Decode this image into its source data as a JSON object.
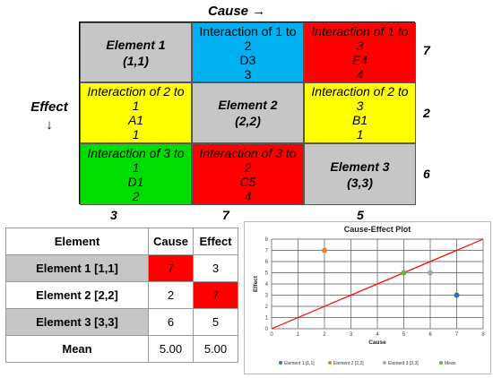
{
  "matrix": {
    "cause_label": "Cause →",
    "effect_label": "Effect",
    "effect_arrow": "↓",
    "cells": [
      [
        {
          "lines": [
            "Element 1",
            "(1,1)"
          ],
          "bg": "#c6c6c6",
          "diag": true
        },
        {
          "lines": [
            "Interaction of 1 to",
            "2",
            "D3",
            "3"
          ],
          "bg": "#00b0f0",
          "italic": false
        },
        {
          "lines": [
            "Interaction of 1 to",
            "3",
            "E4",
            "4"
          ],
          "bg": "#ff0000",
          "italic": true
        }
      ],
      [
        {
          "lines": [
            "Interaction of 2 to",
            "1",
            "A1",
            "1"
          ],
          "bg": "#ffff00",
          "italic": true
        },
        {
          "lines": [
            "Element 2",
            "(2,2)"
          ],
          "bg": "#c6c6c6",
          "diag": true
        },
        {
          "lines": [
            "Interaction of 2 to",
            "3",
            "B1",
            "1"
          ],
          "bg": "#ffff00",
          "italic": true
        }
      ],
      [
        {
          "lines": [
            "Interaction of 3 to",
            "1",
            "D1",
            "2"
          ],
          "bg": "#00dd00",
          "italic": true
        },
        {
          "lines": [
            "Interaction of 3 to",
            "2",
            "C5",
            "4"
          ],
          "bg": "#ff0000",
          "italic": true
        },
        {
          "lines": [
            "Element 3",
            "(3,3)"
          ],
          "bg": "#c6c6c6",
          "diag": true
        }
      ]
    ],
    "row_sums": [
      "7",
      "2",
      "6"
    ],
    "col_sums": [
      "3",
      "7",
      "5"
    ]
  },
  "table": {
    "headers": [
      "Element",
      "Cause",
      "Effect"
    ],
    "rows": [
      {
        "element": "Element 1 [1,1]",
        "cause": "7",
        "effect": "3"
      },
      {
        "element": "Element 2 [2,2]",
        "cause": "2",
        "effect": "7"
      },
      {
        "element": "Element 3 [3,3]",
        "cause": "6",
        "effect": "5"
      },
      {
        "element": "Mean",
        "cause": "5.00",
        "effect": "5.00"
      }
    ]
  },
  "chart_data": {
    "type": "scatter",
    "title": "Cause-Effect Plot",
    "xlabel": "Cause",
    "ylabel": "Effect",
    "xlim": [
      0,
      8
    ],
    "ylim": [
      0,
      8
    ],
    "grid": true,
    "legend_position": "bottom",
    "xticks": [
      "0",
      "1",
      "2",
      "3",
      "4",
      "5",
      "6",
      "7",
      "8"
    ],
    "yticks": [
      "0",
      "1",
      "2",
      "3",
      "4",
      "5",
      "6",
      "7",
      "8"
    ],
    "series": [
      {
        "name": "Element 1 [1,1]",
        "color": "#2e75b6",
        "x": 7,
        "y": 3
      },
      {
        "name": "Element 2 [2,2]",
        "color": "#ed7d31",
        "x": 2,
        "y": 7
      },
      {
        "name": "Element 3 [3,3]",
        "color": "#a5a5a5",
        "x": 6,
        "y": 5
      },
      {
        "name": "Mean",
        "color": "#70ad47",
        "x": 5,
        "y": 5
      }
    ],
    "reference_line": {
      "x": [
        0,
        8
      ],
      "y": [
        0,
        8
      ],
      "color": "#ff0000"
    }
  }
}
